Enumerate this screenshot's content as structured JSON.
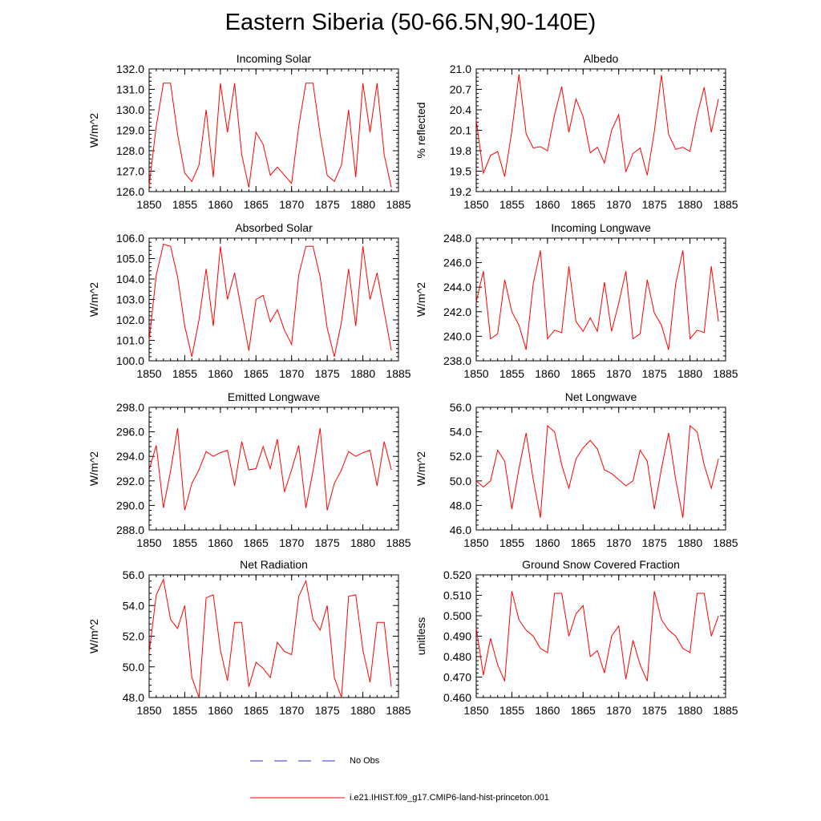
{
  "title": "Eastern Siberia (50-66.5N,90-140E)",
  "line_color": "#ff0000",
  "obs_color": "#3333cc",
  "legend": {
    "obs_label": "No Obs",
    "model_label": "i.e21.IHIST.f09_g17.CMIP6-land-hist-princeton.001"
  },
  "chart_data": [
    {
      "type": "line",
      "title": "Incoming Solar",
      "ylabel": "W/m^2",
      "ylim": [
        126.0,
        132.0
      ],
      "yticks": [
        126.0,
        127.0,
        128.0,
        129.0,
        130.0,
        131.0,
        132.0
      ],
      "ydec": 1,
      "xlim": [
        1850,
        1885
      ],
      "xticks": [
        1850,
        1855,
        1860,
        1865,
        1870,
        1875,
        1880,
        1885
      ],
      "x": [
        1850,
        1851,
        1852,
        1853,
        1854,
        1855,
        1856,
        1857,
        1858,
        1859,
        1860,
        1861,
        1862,
        1863,
        1864,
        1865,
        1866,
        1867,
        1868,
        1869,
        1870,
        1871,
        1872,
        1873,
        1874,
        1875,
        1876,
        1877,
        1878,
        1879,
        1880,
        1881,
        1882,
        1883,
        1884
      ],
      "series": [
        {
          "values": [
            126.3,
            129.2,
            131.3,
            131.3,
            128.8,
            126.9,
            126.5,
            127.3,
            130.0,
            126.7,
            131.3,
            128.9,
            131.3,
            127.8,
            126.2,
            128.9,
            128.3,
            126.8,
            127.2,
            126.8,
            126.4,
            129.2,
            131.3,
            131.3,
            128.8,
            126.8,
            126.5,
            127.3,
            130.0,
            126.7,
            131.3,
            128.9,
            131.3,
            127.8,
            126.2
          ]
        }
      ]
    },
    {
      "type": "line",
      "title": "Albedo",
      "ylabel": "% reflected",
      "ylim": [
        19.2,
        21.0
      ],
      "yticks": [
        19.2,
        19.5,
        19.8,
        20.1,
        20.4,
        20.7,
        21.0
      ],
      "ydec": 1,
      "xlim": [
        1850,
        1885
      ],
      "xticks": [
        1850,
        1855,
        1860,
        1865,
        1870,
        1875,
        1880,
        1885
      ],
      "x": [
        1850,
        1851,
        1852,
        1853,
        1854,
        1855,
        1856,
        1857,
        1858,
        1859,
        1860,
        1861,
        1862,
        1863,
        1864,
        1865,
        1866,
        1867,
        1868,
        1869,
        1870,
        1871,
        1872,
        1873,
        1874,
        1875,
        1876,
        1877,
        1878,
        1879,
        1880,
        1881,
        1882,
        1883,
        1884
      ],
      "series": [
        {
          "values": [
            20.25,
            19.47,
            19.73,
            19.79,
            19.42,
            20.09,
            20.92,
            20.05,
            19.84,
            19.86,
            19.8,
            20.33,
            20.74,
            20.07,
            20.56,
            20.3,
            19.77,
            19.85,
            19.62,
            20.1,
            20.33,
            19.49,
            19.76,
            19.84,
            19.44,
            20.08,
            20.91,
            20.04,
            19.82,
            19.85,
            19.79,
            20.32,
            20.73,
            20.07,
            20.56
          ]
        }
      ]
    },
    {
      "type": "line",
      "title": "Absorbed Solar",
      "ylabel": "W/m^2",
      "ylim": [
        100.0,
        106.0
      ],
      "yticks": [
        100.0,
        101.0,
        102.0,
        103.0,
        104.0,
        105.0,
        106.0
      ],
      "ydec": 1,
      "xlim": [
        1850,
        1885
      ],
      "xticks": [
        1850,
        1855,
        1860,
        1865,
        1870,
        1875,
        1880,
        1885
      ],
      "x": [
        1850,
        1851,
        1852,
        1853,
        1854,
        1855,
        1856,
        1857,
        1858,
        1859,
        1860,
        1861,
        1862,
        1863,
        1864,
        1865,
        1866,
        1867,
        1868,
        1869,
        1870,
        1871,
        1872,
        1873,
        1874,
        1875,
        1876,
        1877,
        1878,
        1879,
        1880,
        1881,
        1882,
        1883,
        1884
      ],
      "series": [
        {
          "values": [
            101.0,
            104.2,
            105.7,
            105.6,
            104.1,
            101.7,
            100.2,
            102.0,
            104.5,
            101.7,
            105.6,
            103.0,
            104.3,
            102.4,
            100.5,
            103.0,
            103.2,
            101.9,
            102.5,
            101.5,
            100.8,
            104.2,
            105.6,
            105.6,
            104.1,
            101.6,
            100.2,
            101.9,
            104.5,
            101.7,
            105.6,
            103.0,
            104.3,
            102.4,
            100.5
          ]
        }
      ]
    },
    {
      "type": "line",
      "title": "Incoming Longwave",
      "ylabel": "W/m^2",
      "ylim": [
        238.0,
        248.0
      ],
      "yticks": [
        238.0,
        240.0,
        242.0,
        244.0,
        246.0,
        248.0
      ],
      "ydec": 1,
      "xlim": [
        1850,
        1885
      ],
      "xticks": [
        1850,
        1855,
        1860,
        1865,
        1870,
        1875,
        1880,
        1885
      ],
      "x": [
        1850,
        1851,
        1852,
        1853,
        1854,
        1855,
        1856,
        1857,
        1858,
        1859,
        1860,
        1861,
        1862,
        1863,
        1864,
        1865,
        1866,
        1867,
        1868,
        1869,
        1870,
        1871,
        1872,
        1873,
        1874,
        1875,
        1876,
        1877,
        1878,
        1879,
        1880,
        1881,
        1882,
        1883,
        1884
      ],
      "series": [
        {
          "values": [
            242.8,
            245.3,
            239.8,
            240.2,
            244.6,
            242.0,
            240.9,
            238.9,
            244.3,
            247.0,
            239.8,
            240.5,
            240.3,
            245.7,
            241.2,
            240.4,
            241.5,
            240.4,
            244.4,
            240.4,
            242.7,
            245.3,
            239.8,
            240.2,
            244.6,
            241.9,
            240.9,
            238.9,
            244.3,
            247.0,
            239.8,
            240.5,
            240.3,
            245.7,
            241.2
          ]
        }
      ]
    },
    {
      "type": "line",
      "title": "Emitted Longwave",
      "ylabel": "W/m^2",
      "ylim": [
        288.0,
        298.0
      ],
      "yticks": [
        288.0,
        290.0,
        292.0,
        294.0,
        296.0,
        298.0
      ],
      "ydec": 1,
      "xlim": [
        1850,
        1885
      ],
      "xticks": [
        1850,
        1855,
        1860,
        1865,
        1870,
        1875,
        1880,
        1885
      ],
      "x": [
        1850,
        1851,
        1852,
        1853,
        1854,
        1855,
        1856,
        1857,
        1858,
        1859,
        1860,
        1861,
        1862,
        1863,
        1864,
        1865,
        1866,
        1867,
        1868,
        1869,
        1870,
        1871,
        1872,
        1873,
        1874,
        1875,
        1876,
        1877,
        1878,
        1879,
        1880,
        1881,
        1882,
        1883,
        1884
      ],
      "series": [
        {
          "values": [
            292.9,
            294.9,
            289.8,
            292.8,
            296.3,
            289.6,
            291.8,
            292.9,
            294.4,
            294.0,
            294.3,
            294.5,
            291.6,
            295.2,
            292.9,
            293.0,
            294.8,
            293.0,
            295.4,
            291.1,
            292.9,
            294.9,
            289.8,
            292.8,
            296.3,
            289.6,
            291.8,
            292.9,
            294.4,
            294.0,
            294.3,
            294.5,
            291.6,
            295.2,
            292.9
          ]
        }
      ]
    },
    {
      "type": "line",
      "title": "Net Longwave",
      "ylabel": "W/m^2",
      "ylim": [
        46.0,
        56.0
      ],
      "yticks": [
        46.0,
        48.0,
        50.0,
        52.0,
        54.0,
        56.0
      ],
      "ydec": 1,
      "xlim": [
        1850,
        1885
      ],
      "xticks": [
        1850,
        1855,
        1860,
        1865,
        1870,
        1875,
        1880,
        1885
      ],
      "x": [
        1850,
        1851,
        1852,
        1853,
        1854,
        1855,
        1856,
        1857,
        1858,
        1859,
        1860,
        1861,
        1862,
        1863,
        1864,
        1865,
        1866,
        1867,
        1868,
        1869,
        1870,
        1871,
        1872,
        1873,
        1874,
        1875,
        1876,
        1877,
        1878,
        1879,
        1880,
        1881,
        1882,
        1883,
        1884
      ],
      "series": [
        {
          "values": [
            50.0,
            49.5,
            50.0,
            52.5,
            51.6,
            47.7,
            51.0,
            53.9,
            50.1,
            47.0,
            54.5,
            54.0,
            51.3,
            49.4,
            51.8,
            52.7,
            53.3,
            52.6,
            50.9,
            50.6,
            50.1,
            49.6,
            50.0,
            52.5,
            51.6,
            47.7,
            51.0,
            53.9,
            50.1,
            47.0,
            54.5,
            54.0,
            51.3,
            49.4,
            51.8
          ]
        }
      ]
    },
    {
      "type": "line",
      "title": "Net Radiation",
      "ylabel": "W/m^2",
      "ylim": [
        48.0,
        56.0
      ],
      "yticks": [
        48.0,
        50.0,
        52.0,
        54.0,
        56.0
      ],
      "ydec": 1,
      "xlim": [
        1850,
        1885
      ],
      "xticks": [
        1850,
        1855,
        1860,
        1865,
        1870,
        1875,
        1880,
        1885
      ],
      "x": [
        1850,
        1851,
        1852,
        1853,
        1854,
        1855,
        1856,
        1857,
        1858,
        1859,
        1860,
        1861,
        1862,
        1863,
        1864,
        1865,
        1866,
        1867,
        1868,
        1869,
        1870,
        1871,
        1872,
        1873,
        1874,
        1875,
        1876,
        1877,
        1878,
        1879,
        1880,
        1881,
        1882,
        1883,
        1884
      ],
      "series": [
        {
          "values": [
            50.9,
            54.7,
            55.7,
            53.1,
            52.5,
            54.0,
            49.3,
            48.0,
            54.5,
            54.7,
            51.1,
            49.1,
            52.9,
            52.9,
            48.7,
            50.3,
            49.9,
            49.3,
            51.6,
            51.0,
            50.8,
            54.6,
            55.6,
            53.1,
            52.4,
            54.0,
            49.3,
            48.0,
            54.6,
            54.7,
            51.1,
            49.0,
            52.9,
            52.9,
            48.7
          ]
        }
      ]
    },
    {
      "type": "line",
      "title": "Ground Snow Covered Fraction",
      "ylabel": "unitless",
      "ylim": [
        0.46,
        0.52
      ],
      "yticks": [
        0.46,
        0.47,
        0.48,
        0.49,
        0.5,
        0.51,
        0.52
      ],
      "ydec": 3,
      "xlim": [
        1850,
        1885
      ],
      "xticks": [
        1850,
        1855,
        1860,
        1865,
        1870,
        1875,
        1880,
        1885
      ],
      "x": [
        1850,
        1851,
        1852,
        1853,
        1854,
        1855,
        1856,
        1857,
        1858,
        1859,
        1860,
        1861,
        1862,
        1863,
        1864,
        1865,
        1866,
        1867,
        1868,
        1869,
        1870,
        1871,
        1872,
        1873,
        1874,
        1875,
        1876,
        1877,
        1878,
        1879,
        1880,
        1881,
        1882,
        1883,
        1884
      ],
      "series": [
        {
          "values": [
            0.494,
            0.471,
            0.489,
            0.476,
            0.468,
            0.512,
            0.498,
            0.493,
            0.49,
            0.484,
            0.482,
            0.511,
            0.511,
            0.49,
            0.501,
            0.505,
            0.48,
            0.483,
            0.472,
            0.49,
            0.495,
            0.469,
            0.488,
            0.476,
            0.468,
            0.512,
            0.498,
            0.493,
            0.49,
            0.484,
            0.482,
            0.511,
            0.511,
            0.49,
            0.5
          ]
        }
      ]
    }
  ]
}
